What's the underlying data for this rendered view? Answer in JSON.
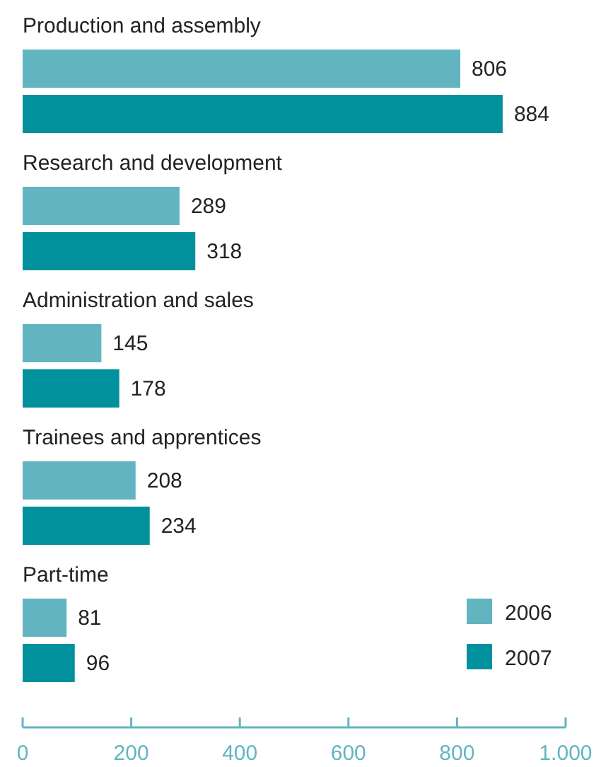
{
  "chart_data": {
    "type": "bar",
    "orientation": "horizontal",
    "categories": [
      "Production and assembly",
      "Research and development",
      "Administration and sales",
      "Trainees and apprentices",
      "Part-time"
    ],
    "series": [
      {
        "name": "2006",
        "color": "#62b5c0",
        "values": [
          806,
          289,
          145,
          208,
          81
        ]
      },
      {
        "name": "2007",
        "color": "#00919c",
        "values": [
          884,
          318,
          178,
          234,
          96
        ]
      }
    ],
    "xlim": [
      0,
      1000
    ],
    "xticks": [
      0,
      200,
      400,
      600,
      800,
      {
        "value": 1000,
        "label": "1.000"
      }
    ],
    "data_labels": true,
    "legend": "bottom right",
    "grid": false
  }
}
